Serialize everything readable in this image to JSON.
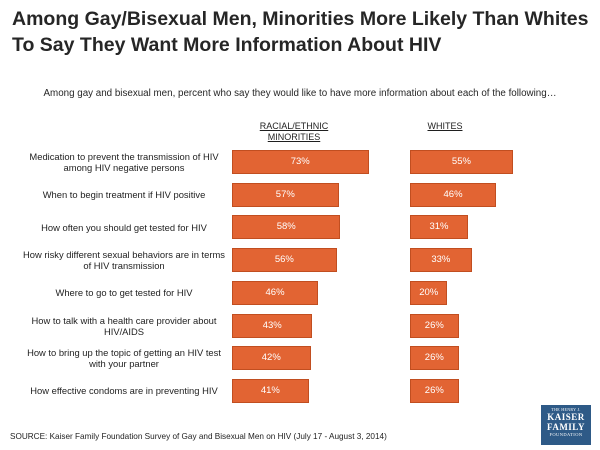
{
  "chart_data": {
    "type": "bar",
    "title": "Among Gay/Bisexual Men, Minorities More Likely Than Whites To Say They Want More Information About HIV",
    "subtitle": "Among gay and bisexual men, percent who say they would like to have more information about each of the following…",
    "categories": [
      "Medication to prevent the transmission of HIV among HIV negative persons",
      "When to begin treatment if HIV positive",
      "How often you should get tested for HIV",
      "How risky different sexual behaviors are in terms of HIV transmission",
      "Where to go to get tested for HIV",
      "How to talk with a health care provider about HIV/AIDS",
      "How to bring up the topic of getting an HIV test with your partner",
      "How effective condoms are in preventing HIV"
    ],
    "series": [
      {
        "name": "RACIAL/ETHNIC MINORITIES",
        "values": [
          73,
          57,
          58,
          56,
          46,
          43,
          42,
          41
        ]
      },
      {
        "name": "WHITES",
        "values": [
          55,
          46,
          31,
          33,
          20,
          26,
          26,
          26
        ]
      }
    ],
    "value_suffix": "%",
    "color": "#e26433",
    "source": "SOURCE: Kaiser Family Foundation Survey of Gay and Bisexual Men on HIV (July 17 - August 3, 2014)"
  },
  "logo": {
    "line1": "THE HENRY J.",
    "line2": "KAISER",
    "line3": "FAMILY",
    "line4": "FOUNDATION"
  }
}
